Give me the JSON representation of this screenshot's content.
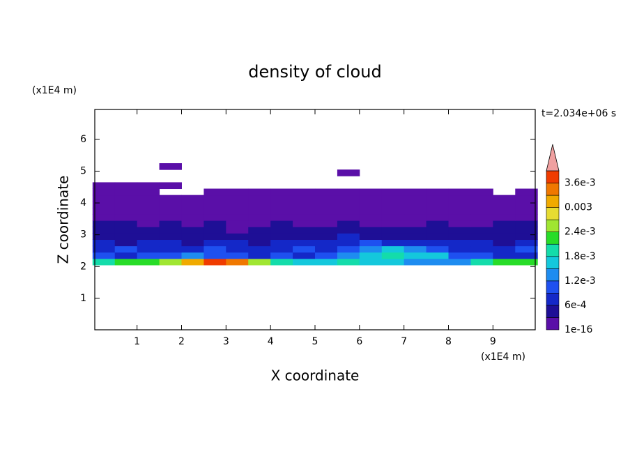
{
  "chart_data": {
    "type": "contour",
    "title": "density of cloud",
    "xlabel": "X coordinate",
    "ylabel": "Z coordinate",
    "x_unit": "(x1E4 m)",
    "y_unit": "(x1E4 m)",
    "time_label": "t=2.034e+06 s",
    "xlim": [
      0.05,
      9.95
    ],
    "ylim": [
      0.01,
      6.94
    ],
    "xticks": [
      1,
      2,
      3,
      4,
      5,
      6,
      7,
      8,
      9
    ],
    "yticks": [
      1,
      2,
      3,
      4,
      5,
      6
    ],
    "x": [
      0.25,
      0.75,
      1.25,
      1.75,
      2.25,
      2.75,
      3.25,
      3.75,
      4.25,
      4.75,
      5.25,
      5.75,
      6.25,
      6.75,
      7.25,
      7.75,
      8.25,
      8.75,
      9.25,
      9.75
    ],
    "y": [
      2.15,
      2.35,
      2.55,
      2.75,
      2.95,
      3.15,
      3.35,
      3.55,
      3.75,
      3.95,
      4.15,
      4.35,
      4.55,
      4.75,
      4.95,
      5.15
    ],
    "z": [
      [
        0.0019,
        0.0021,
        0.0022,
        0.0026,
        0.0031,
        0.0037,
        0.0034,
        0.0026,
        0.0019,
        0.0017,
        0.0016,
        0.0018,
        0.0016,
        0.0015,
        0.0014,
        0.0013,
        0.0014,
        0.0019,
        0.0023,
        0.0022
      ],
      [
        0.0009,
        0.0008,
        0.001,
        0.0011,
        0.0012,
        0.001,
        0.0009,
        0.0008,
        0.0009,
        0.0008,
        0.001,
        0.0014,
        0.0017,
        0.0018,
        0.0017,
        0.0015,
        0.0011,
        0.0009,
        0.0008,
        0.0008
      ],
      [
        0.0007,
        0.0009,
        0.0008,
        0.0007,
        0.0008,
        0.0009,
        0.0008,
        0.0007,
        0.0008,
        0.0009,
        0.0008,
        0.001,
        0.0012,
        0.0015,
        0.0013,
        0.0011,
        0.0008,
        0.0007,
        0.0008,
        0.0009
      ],
      [
        0.0006,
        0.0005,
        0.0007,
        0.0006,
        0.0005,
        0.0007,
        0.0006,
        0.0005,
        0.0006,
        0.0007,
        0.0008,
        0.0007,
        0.0009,
        0.0008,
        0.0007,
        0.0008,
        0.0006,
        0.0007,
        0.0005,
        0.0006
      ],
      [
        0.0004,
        0.0005,
        0.0004,
        0.0003,
        0.0005,
        0.0004,
        0.0005,
        0.0004,
        0.0003,
        0.0005,
        0.0004,
        0.0006,
        0.0005,
        0.0004,
        0.0005,
        0.0004,
        0.0005,
        0.0004,
        0.0005,
        0.0004
      ],
      [
        0.0005,
        0.0004,
        0.0003,
        0.0004,
        0.0003,
        0.0004,
        0.0002,
        0.0003,
        0.0004,
        0.0003,
        0.0004,
        0.0003,
        0.0004,
        0.0003,
        0.0004,
        0.0005,
        0.0004,
        0.0003,
        0.0004,
        0.0005
      ],
      [
        0.0004,
        0.0003,
        0.0002,
        0.0003,
        0.0002,
        0.0003,
        0.0002,
        0.0002,
        0.0003,
        0.0002,
        0.0002,
        0.0003,
        0.0002,
        0.0002,
        0.0002,
        0.0003,
        0.0002,
        0.0002,
        0.0003,
        0.0004
      ],
      [
        0.0002,
        0.0001,
        0.0002,
        0.0001,
        0.0001,
        0.0002,
        0.0001,
        0.0001,
        0.0001,
        0.0002,
        0.0001,
        0.0001,
        0.0002,
        0.0001,
        0.0001,
        0.0001,
        0.0002,
        0.0001,
        0.0001,
        0.0002
      ],
      [
        0.0001,
        0.0001,
        0.0001,
        0.0001,
        0.0001,
        0.0001,
        0.0001,
        0.0001,
        0.0001,
        0.0001,
        0.0001,
        0.0001,
        0.0001,
        0.0001,
        0.0001,
        0.0001,
        0.0001,
        0.0001,
        0.0001,
        0.0001
      ],
      [
        0.0001,
        0.0001,
        0.0001,
        0.0001,
        0.0001,
        0.0001,
        0.0001,
        0.0001,
        0.0001,
        0.0001,
        0.0001,
        0.0001,
        0.0001,
        0.0001,
        0.0001,
        0.0001,
        0.0001,
        0.0001,
        0.0001,
        0.0001
      ],
      [
        0.0001,
        0.0001,
        0.0001,
        0.0001,
        0.0001,
        0.0001,
        0.0001,
        0.0001,
        0.0001,
        0.0001,
        0.0001,
        0.0001,
        0.0001,
        0.0001,
        0.0001,
        0.0001,
        0.0001,
        0.0001,
        0.0001,
        0.0001
      ],
      [
        0.0001,
        0.0001,
        0.0001,
        null,
        null,
        0.0001,
        0.0001,
        0.0001,
        0.0001,
        0.0001,
        0.0001,
        0.0001,
        0.0001,
        0.0001,
        0.0001,
        0.0001,
        0.0001,
        0.0001,
        null,
        0.0001
      ],
      [
        0.0001,
        0.0001,
        0.0001,
        0.0001,
        null,
        null,
        null,
        null,
        null,
        null,
        null,
        null,
        null,
        null,
        null,
        null,
        null,
        null,
        null,
        null
      ],
      [
        null,
        null,
        null,
        null,
        null,
        null,
        null,
        null,
        null,
        null,
        null,
        null,
        null,
        null,
        null,
        null,
        null,
        null,
        null,
        null
      ],
      [
        null,
        null,
        null,
        null,
        null,
        null,
        null,
        null,
        null,
        null,
        null,
        0.0001,
        null,
        null,
        null,
        null,
        null,
        null,
        null,
        null
      ],
      [
        null,
        null,
        null,
        0.0001,
        null,
        null,
        null,
        null,
        null,
        null,
        null,
        null,
        null,
        null,
        null,
        null,
        null,
        null,
        null,
        null
      ]
    ],
    "clevels": [
      1e-16,
      0.0003,
      0.0006,
      0.0009,
      0.0012,
      0.0015,
      0.0018,
      0.0021,
      0.0024,
      0.0027,
      0.003,
      0.0033,
      0.0036,
      0.0039
    ],
    "colors": [
      "#5a0fa8",
      "#1e0f96",
      "#1428c8",
      "#1e50f0",
      "#1e8cf0",
      "#14c8dc",
      "#14dcaa",
      "#28dc28",
      "#a0e632",
      "#e6dc32",
      "#f0aa00",
      "#f07800",
      "#f03c00",
      "#f0a0a0"
    ],
    "cticks": [
      1e-16,
      {
        "value": 0.0006,
        "label": "6e-4"
      },
      {
        "value": 0.0012,
        "label": "1.2e-3"
      },
      {
        "value": 0.0018,
        "label": "1.8e-3"
      },
      {
        "value": 0.0024,
        "label": "2.4e-3"
      },
      0.003,
      {
        "value": 0.0036,
        "label": "3.6e-3"
      }
    ]
  }
}
